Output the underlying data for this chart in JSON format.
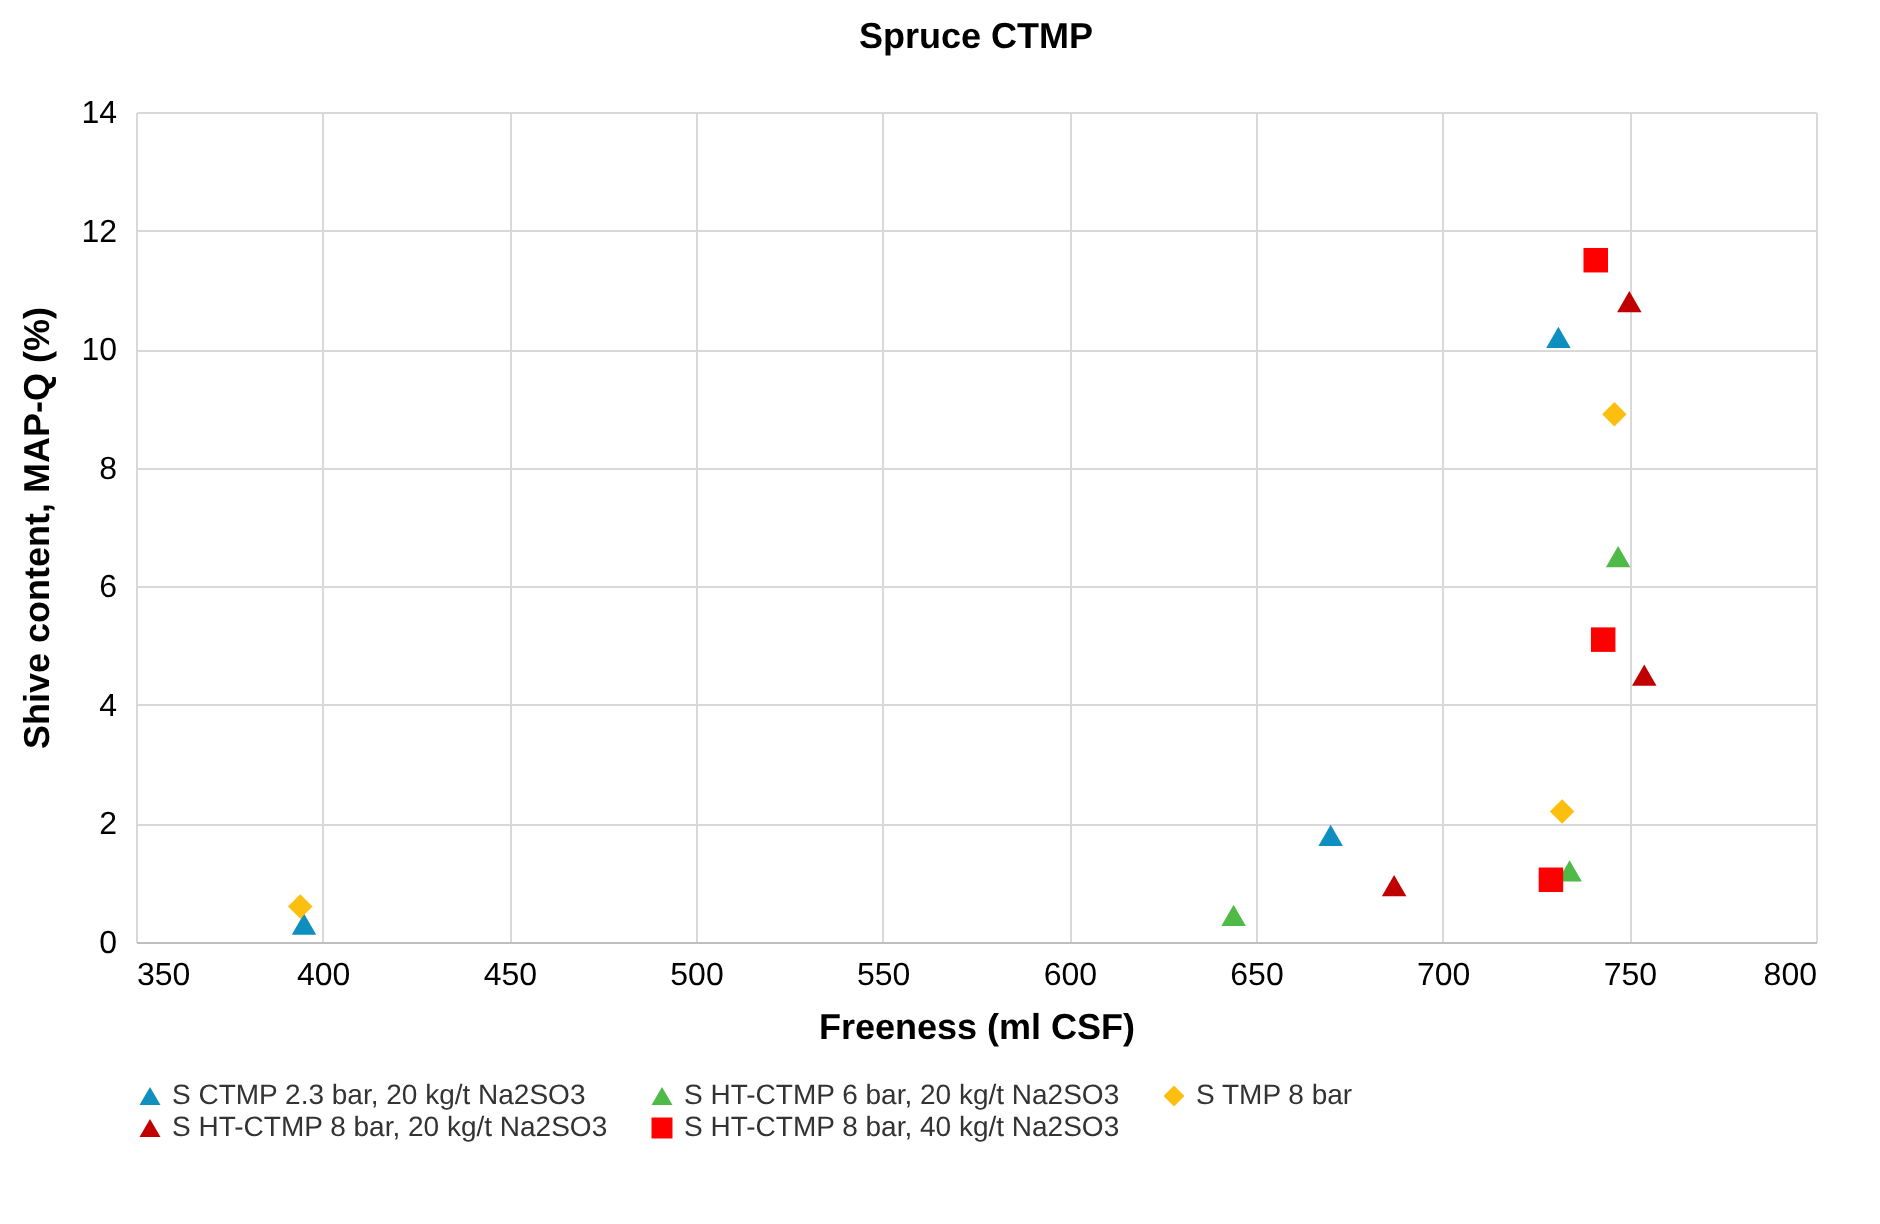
{
  "chart_data": {
    "type": "scatter",
    "title": "Spruce CTMP",
    "xlabel": "Freeness (ml CSF)",
    "ylabel": "Shive content, MAP-Q (%)",
    "xlim": [
      350,
      800
    ],
    "xticks": [
      350,
      400,
      450,
      500,
      550,
      600,
      650,
      700,
      750,
      800
    ],
    "ylim": [
      0,
      14
    ],
    "yticks": [
      0,
      2,
      4,
      6,
      8,
      10,
      12,
      14
    ],
    "grid": true,
    "legend": "bottom",
    "series": [
      {
        "name": "S CTMP 2.3 bar, 20 kg/t Na2SO3",
        "color": "#0e8fc0",
        "marker": "triangle",
        "x": [
          395,
          670,
          731
        ],
        "values": [
          0.3,
          1.8,
          10.2
        ]
      },
      {
        "name": "S HT-CTMP 6 bar, 20 kg/t Na2SO3",
        "color": "#4fba47",
        "marker": "triangle",
        "x": [
          644,
          734,
          747
        ],
        "values": [
          0.45,
          1.2,
          6.5
        ]
      },
      {
        "name": "S TMP 8 bar",
        "color": "#fcbf10",
        "marker": "diamond",
        "x": [
          394,
          732,
          746
        ],
        "values": [
          0.6,
          2.2,
          8.9
        ]
      },
      {
        "name": "S HT-CTMP 8 bar, 20 kg/t Na2SO3",
        "color": "#c00000",
        "marker": "triangle",
        "x": [
          687,
          750,
          754
        ],
        "values": [
          0.95,
          10.8,
          4.5
        ]
      },
      {
        "name": "S HT-CTMP 8 bar, 40 kg/t Na2SO3",
        "color": "#ff0000",
        "marker": "square",
        "x": [
          729,
          741,
          743
        ],
        "values": [
          1.05,
          11.5,
          5.1
        ]
      }
    ]
  }
}
